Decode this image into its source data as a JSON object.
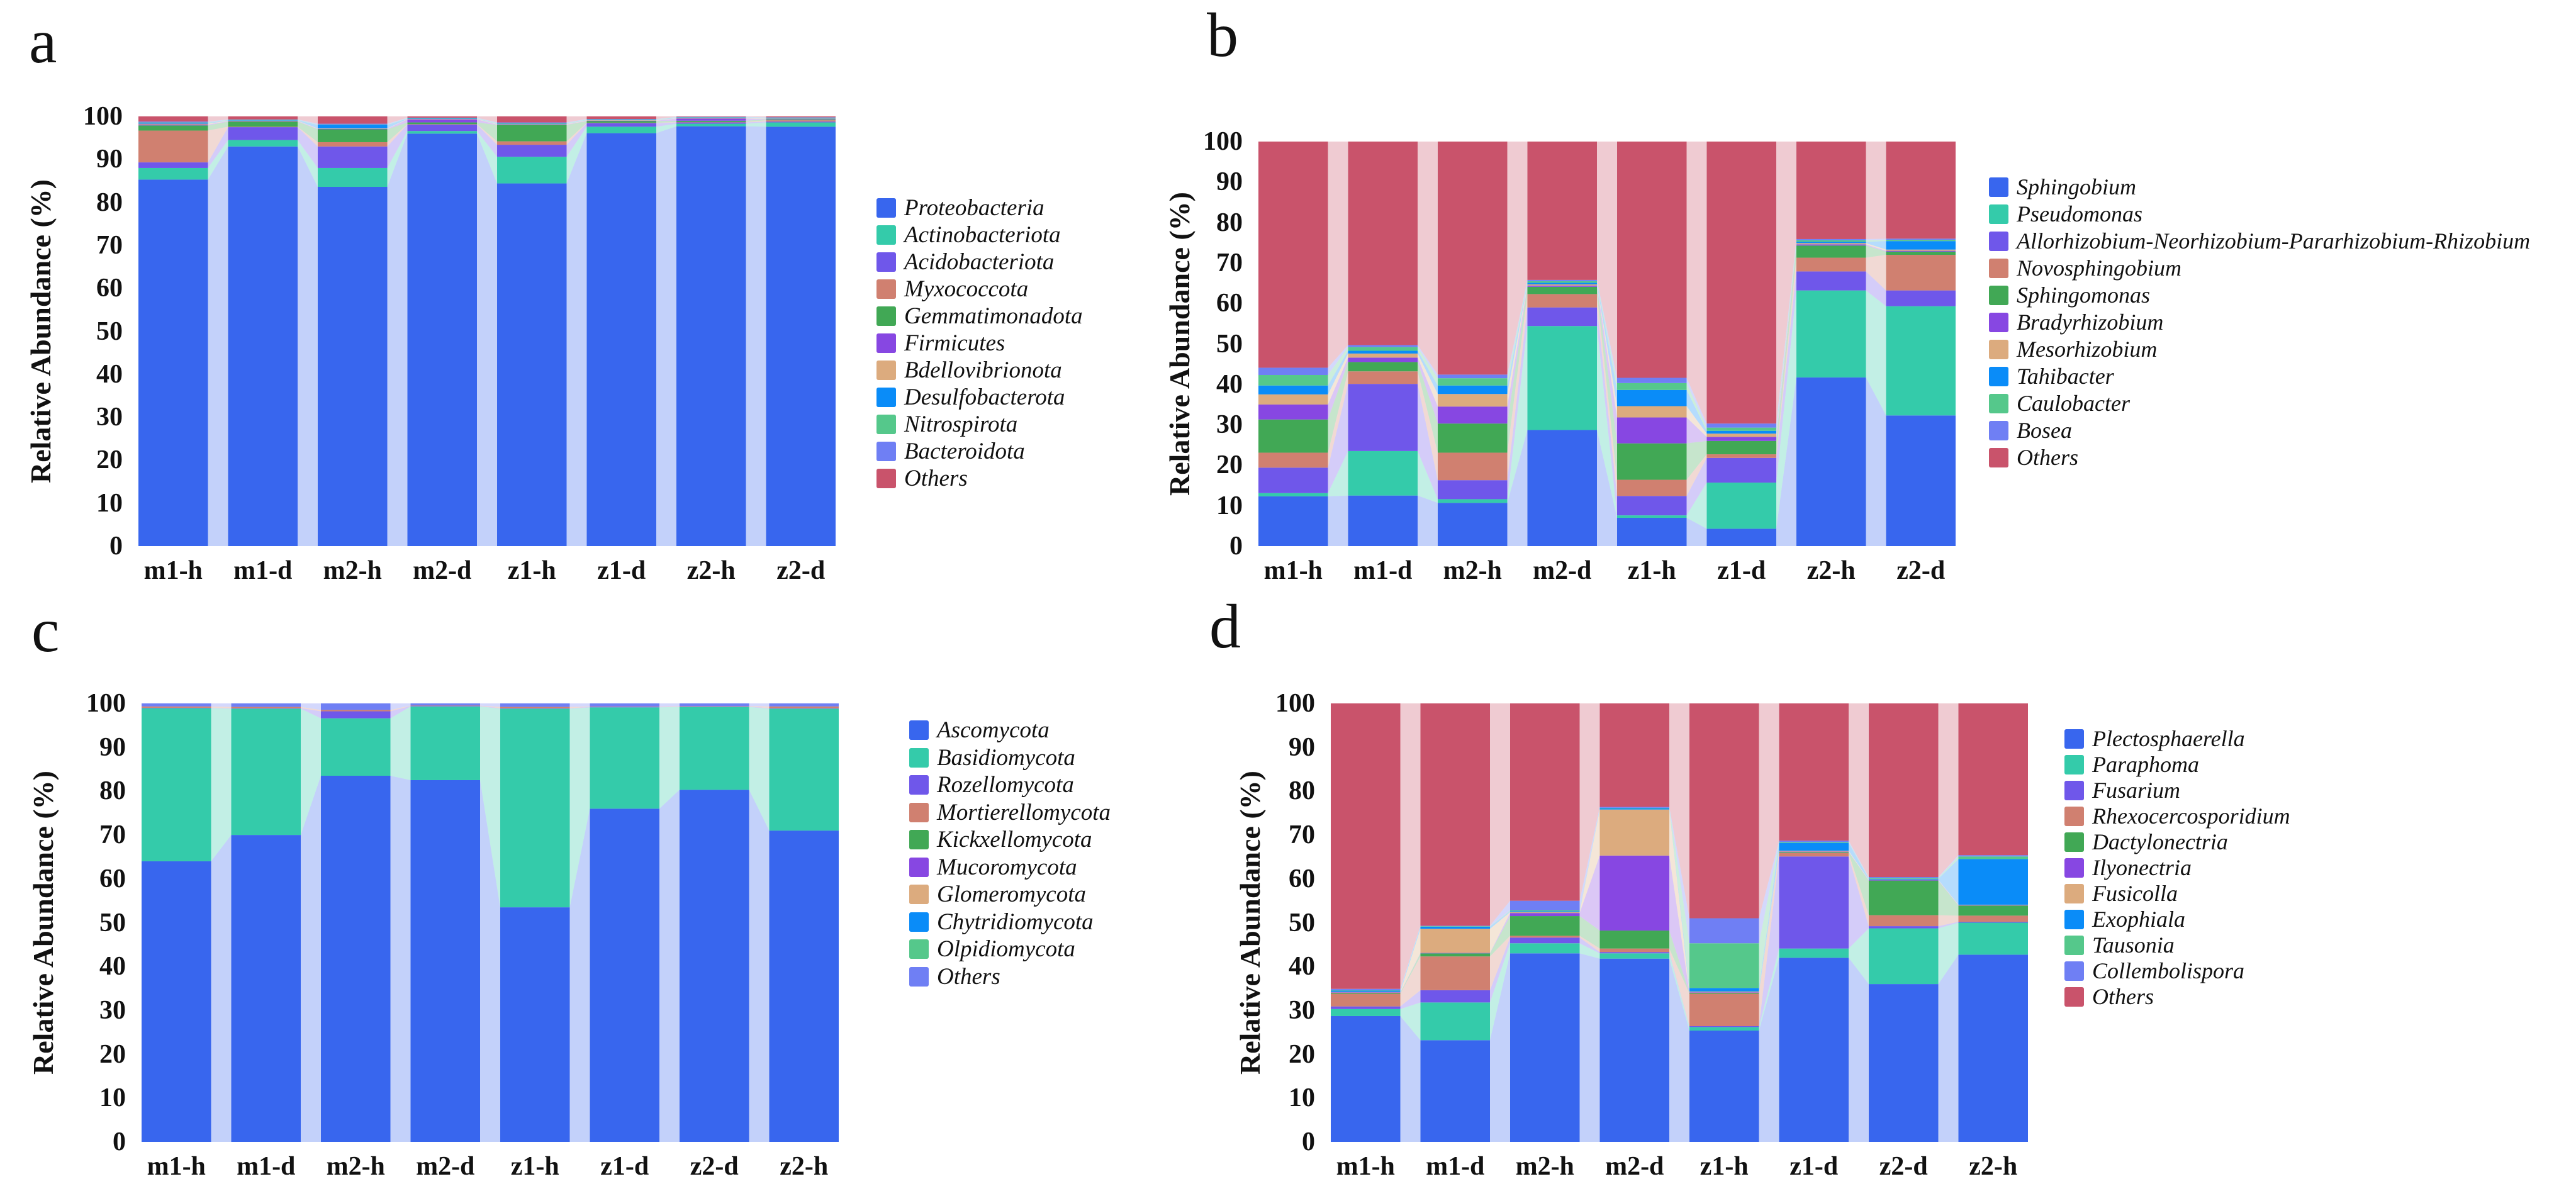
{
  "chart_data": [
    {
      "id": "a",
      "panel_label": "a",
      "type": "bar",
      "subtype": "stacked-bar-alluvial",
      "ylabel": "Relative Abundance (%)",
      "ylim": [
        0,
        100
      ],
      "yticks": [
        0,
        10,
        20,
        30,
        40,
        50,
        60,
        70,
        80,
        90,
        100
      ],
      "grid": false,
      "legend_position": "right",
      "categories": [
        "m1-h",
        "m1-d",
        "m2-h",
        "m2-d",
        "z1-h",
        "z1-d",
        "z2-h",
        "z2-d"
      ],
      "series": [
        {
          "name": "Proteobacteria",
          "color": "#3866ee",
          "values": [
            85.3,
            93.0,
            83.6,
            96.0,
            84.4,
            96.1,
            97.7,
            97.6
          ]
        },
        {
          "name": "Actinobacteriota",
          "color": "#34cbaa",
          "values": [
            2.7,
            1.5,
            4.4,
            0.6,
            6.2,
            1.5,
            0.6,
            1.0
          ]
        },
        {
          "name": "Acidobacteriota",
          "color": "#6f57ea",
          "values": [
            1.3,
            3.0,
            5.0,
            1.5,
            2.8,
            0.8,
            0.3,
            0.2
          ]
        },
        {
          "name": "Myxococcota",
          "color": "#d08070",
          "values": [
            7.4,
            0.1,
            1.0,
            0.1,
            0.8,
            0.1,
            0.1,
            0.3
          ]
        },
        {
          "name": "Gemmatimonadota",
          "color": "#41a855",
          "values": [
            1.2,
            1.2,
            3.0,
            0.4,
            3.8,
            0.4,
            0.3,
            0.2
          ]
        },
        {
          "name": "Firmicutes",
          "color": "#8747e2",
          "values": [
            0.2,
            0.1,
            0.1,
            0.7,
            0.1,
            0.1,
            0.5,
            0.1
          ]
        },
        {
          "name": "Bdellovibrionota",
          "color": "#dcab7e",
          "values": [
            0.2,
            0.1,
            0.1,
            0.1,
            0.1,
            0.1,
            0.1,
            0.1
          ]
        },
        {
          "name": "Desulfobacterota",
          "color": "#0a8cf8",
          "values": [
            0.2,
            0.1,
            0.8,
            0.1,
            0.1,
            0.1,
            0.1,
            0.1
          ]
        },
        {
          "name": "Nitrospirota",
          "color": "#55c88b",
          "values": [
            0.1,
            0.1,
            0.1,
            0.1,
            0.1,
            0.1,
            0.1,
            0.1
          ]
        },
        {
          "name": "Bacteroidota",
          "color": "#6f7ff4",
          "values": [
            0.2,
            0.1,
            0.2,
            0.1,
            0.2,
            0.1,
            0.1,
            0.1
          ]
        },
        {
          "name": "Others",
          "color": "#c9536b",
          "values": [
            1.2,
            0.7,
            1.7,
            0.3,
            1.4,
            0.6,
            0.1,
            0.2
          ]
        }
      ]
    },
    {
      "id": "b",
      "panel_label": "b",
      "type": "bar",
      "subtype": "stacked-bar-alluvial",
      "ylabel": "Relative Abundance (%)",
      "ylim": [
        0,
        100
      ],
      "yticks": [
        0,
        10,
        20,
        30,
        40,
        50,
        60,
        70,
        80,
        90,
        100
      ],
      "grid": false,
      "legend_position": "right",
      "categories": [
        "m1-h",
        "m1-d",
        "m2-h",
        "m2-d",
        "z1-h",
        "z1-d",
        "z2-h",
        "z2-d"
      ],
      "series": [
        {
          "name": "Sphingobium",
          "color": "#3866ee",
          "values": [
            12.3,
            12.5,
            10.7,
            28.7,
            7.0,
            4.3,
            41.7,
            32.3
          ]
        },
        {
          "name": "Pseudomonas",
          "color": "#34cbaa",
          "values": [
            0.8,
            11.0,
            0.9,
            25.7,
            0.6,
            11.4,
            21.5,
            27.0
          ]
        },
        {
          "name": "Allorhizobium-Neorhizobium-Pararhizobium-Rhizobium",
          "color": "#6f57ea",
          "values": [
            6.3,
            16.6,
            4.7,
            4.6,
            4.8,
            6.1,
            4.7,
            3.9
          ]
        },
        {
          "name": "Novosphingobium",
          "color": "#d08070",
          "values": [
            3.7,
            3.1,
            6.8,
            3.3,
            4.0,
            0.9,
            3.4,
            8.8
          ]
        },
        {
          "name": "Sphingomonas",
          "color": "#41a855",
          "values": [
            8.2,
            2.3,
            7.2,
            1.8,
            9.0,
            3.3,
            3.0,
            0.8
          ]
        },
        {
          "name": "Bradyrhizobium",
          "color": "#8747e2",
          "values": [
            3.7,
            1.1,
            4.2,
            0.3,
            6.4,
            1.0,
            0.3,
            0.2
          ]
        },
        {
          "name": "Mesorhizobium",
          "color": "#dcab7e",
          "values": [
            2.5,
            1.0,
            3.1,
            0.3,
            2.8,
            0.8,
            0.3,
            0.3
          ]
        },
        {
          "name": "Tahibacter",
          "color": "#0a8cf8",
          "values": [
            2.2,
            0.7,
            2.1,
            0.4,
            4.0,
            0.7,
            0.3,
            2.1
          ]
        },
        {
          "name": "Caulobacter",
          "color": "#55c88b",
          "values": [
            2.6,
            0.9,
            1.8,
            0.4,
            1.7,
            0.8,
            0.4,
            0.3
          ]
        },
        {
          "name": "Bosea",
          "color": "#6f7ff4",
          "values": [
            1.8,
            0.5,
            0.9,
            0.3,
            1.3,
            1.0,
            0.3,
            0.3
          ]
        },
        {
          "name": "Others",
          "color": "#c9536b",
          "values": [
            55.9,
            50.3,
            57.6,
            34.2,
            58.4,
            69.7,
            24.1,
            24.0
          ]
        }
      ]
    },
    {
      "id": "c",
      "panel_label": "c",
      "type": "bar",
      "subtype": "stacked-bar-alluvial",
      "ylabel": "Relative Abundance (%)",
      "ylim": [
        0,
        100
      ],
      "yticks": [
        0,
        10,
        20,
        30,
        40,
        50,
        60,
        70,
        80,
        90,
        100
      ],
      "grid": false,
      "legend_position": "right",
      "categories": [
        "m1-h",
        "m1-d",
        "m2-h",
        "m2-d",
        "z1-h",
        "z1-d",
        "z2-d",
        "z2-h"
      ],
      "series": [
        {
          "name": "Ascomycota",
          "color": "#3866ee",
          "values": [
            64.0,
            70.0,
            83.5,
            82.5,
            53.5,
            76.0,
            80.3,
            71.0
          ]
        },
        {
          "name": "Basidiomycota",
          "color": "#34cbaa",
          "values": [
            34.9,
            28.8,
            13.1,
            16.8,
            45.3,
            23.1,
            18.9,
            27.8
          ]
        },
        {
          "name": "Rozellomycota",
          "color": "#6f57ea",
          "values": [
            0.1,
            0.1,
            1.6,
            0.1,
            0.1,
            0.1,
            0.1,
            0.1
          ]
        },
        {
          "name": "Mortierellomycota",
          "color": "#d08070",
          "values": [
            0.3,
            0.3,
            0.3,
            0.1,
            0.3,
            0.1,
            0.1,
            0.4
          ]
        },
        {
          "name": "Kickxellomycota",
          "color": "#41a855",
          "values": [
            0,
            0,
            0,
            0,
            0,
            0,
            0,
            0
          ]
        },
        {
          "name": "Mucoromycota",
          "color": "#8747e2",
          "values": [
            0,
            0,
            0,
            0,
            0,
            0,
            0,
            0
          ]
        },
        {
          "name": "Glomeromycota",
          "color": "#dcab7e",
          "values": [
            0,
            0,
            0,
            0,
            0,
            0,
            0,
            0
          ]
        },
        {
          "name": "Chytridiomycota",
          "color": "#0a8cf8",
          "values": [
            0,
            0,
            0,
            0,
            0,
            0,
            0,
            0
          ]
        },
        {
          "name": "Olpidiomycota",
          "color": "#55c88b",
          "values": [
            0,
            0,
            0,
            0,
            0,
            0,
            0,
            0
          ]
        },
        {
          "name": "Others",
          "color": "#6f7ff4",
          "values": [
            0.7,
            0.8,
            1.5,
            0.5,
            0.8,
            0.7,
            0.6,
            0.7
          ]
        }
      ]
    },
    {
      "id": "d",
      "panel_label": "d",
      "type": "bar",
      "subtype": "stacked-bar-alluvial",
      "ylabel": "Relative Abundance (%)",
      "ylim": [
        0,
        100
      ],
      "yticks": [
        0,
        10,
        20,
        30,
        40,
        50,
        60,
        70,
        80,
        90,
        100
      ],
      "grid": false,
      "legend_position": "right",
      "categories": [
        "m1-h",
        "m1-d",
        "m2-h",
        "m2-d",
        "z1-h",
        "z1-d",
        "z2-d",
        "z2-h"
      ],
      "series": [
        {
          "name": "Plectosphaerella",
          "color": "#3866ee",
          "values": [
            28.7,
            23.2,
            43.0,
            41.8,
            25.4,
            42.0,
            36.0,
            42.7
          ]
        },
        {
          "name": "Paraphoma",
          "color": "#34cbaa",
          "values": [
            1.6,
            8.6,
            2.3,
            1.2,
            0.8,
            2.1,
            12.7,
            7.3
          ]
        },
        {
          "name": "Fusarium",
          "color": "#6f57ea",
          "values": [
            0.6,
            2.8,
            1.3,
            0.3,
            0.2,
            21.0,
            0.5,
            0.2
          ]
        },
        {
          "name": "Rhexocercosporidium",
          "color": "#d08070",
          "values": [
            2.9,
            7.7,
            0.4,
            0.8,
            7.4,
            0.8,
            2.5,
            1.4
          ]
        },
        {
          "name": "Dactylonectria",
          "color": "#41a855",
          "values": [
            0.2,
            0.7,
            4.5,
            4.1,
            0.2,
            0.2,
            7.9,
            2.3
          ]
        },
        {
          "name": "Ilyonectria",
          "color": "#8747e2",
          "values": [
            0.1,
            0.1,
            0.7,
            17.1,
            0.1,
            0.1,
            0.1,
            0.1
          ]
        },
        {
          "name": "Fusicolla",
          "color": "#dcab7e",
          "values": [
            0.1,
            5.5,
            0.2,
            10.5,
            0.2,
            0.2,
            0.1,
            0.1
          ]
        },
        {
          "name": "Exophiala",
          "color": "#0a8cf8",
          "values": [
            0.3,
            0.5,
            0.2,
            0.3,
            0.8,
            1.8,
            0.2,
            10.4
          ]
        },
        {
          "name": "Tausonia",
          "color": "#55c88b",
          "values": [
            0.1,
            0.1,
            0.2,
            0.1,
            10.2,
            0.2,
            0.2,
            0.6
          ]
        },
        {
          "name": "Collembolispora",
          "color": "#6f7ff4",
          "values": [
            0.3,
            0.1,
            2.2,
            0.2,
            5.7,
            0.3,
            0.2,
            0.3
          ]
        },
        {
          "name": "Others",
          "color": "#c9536b",
          "values": [
            65.1,
            50.7,
            45.0,
            23.6,
            49.0,
            31.3,
            39.6,
            34.6
          ]
        }
      ]
    }
  ]
}
